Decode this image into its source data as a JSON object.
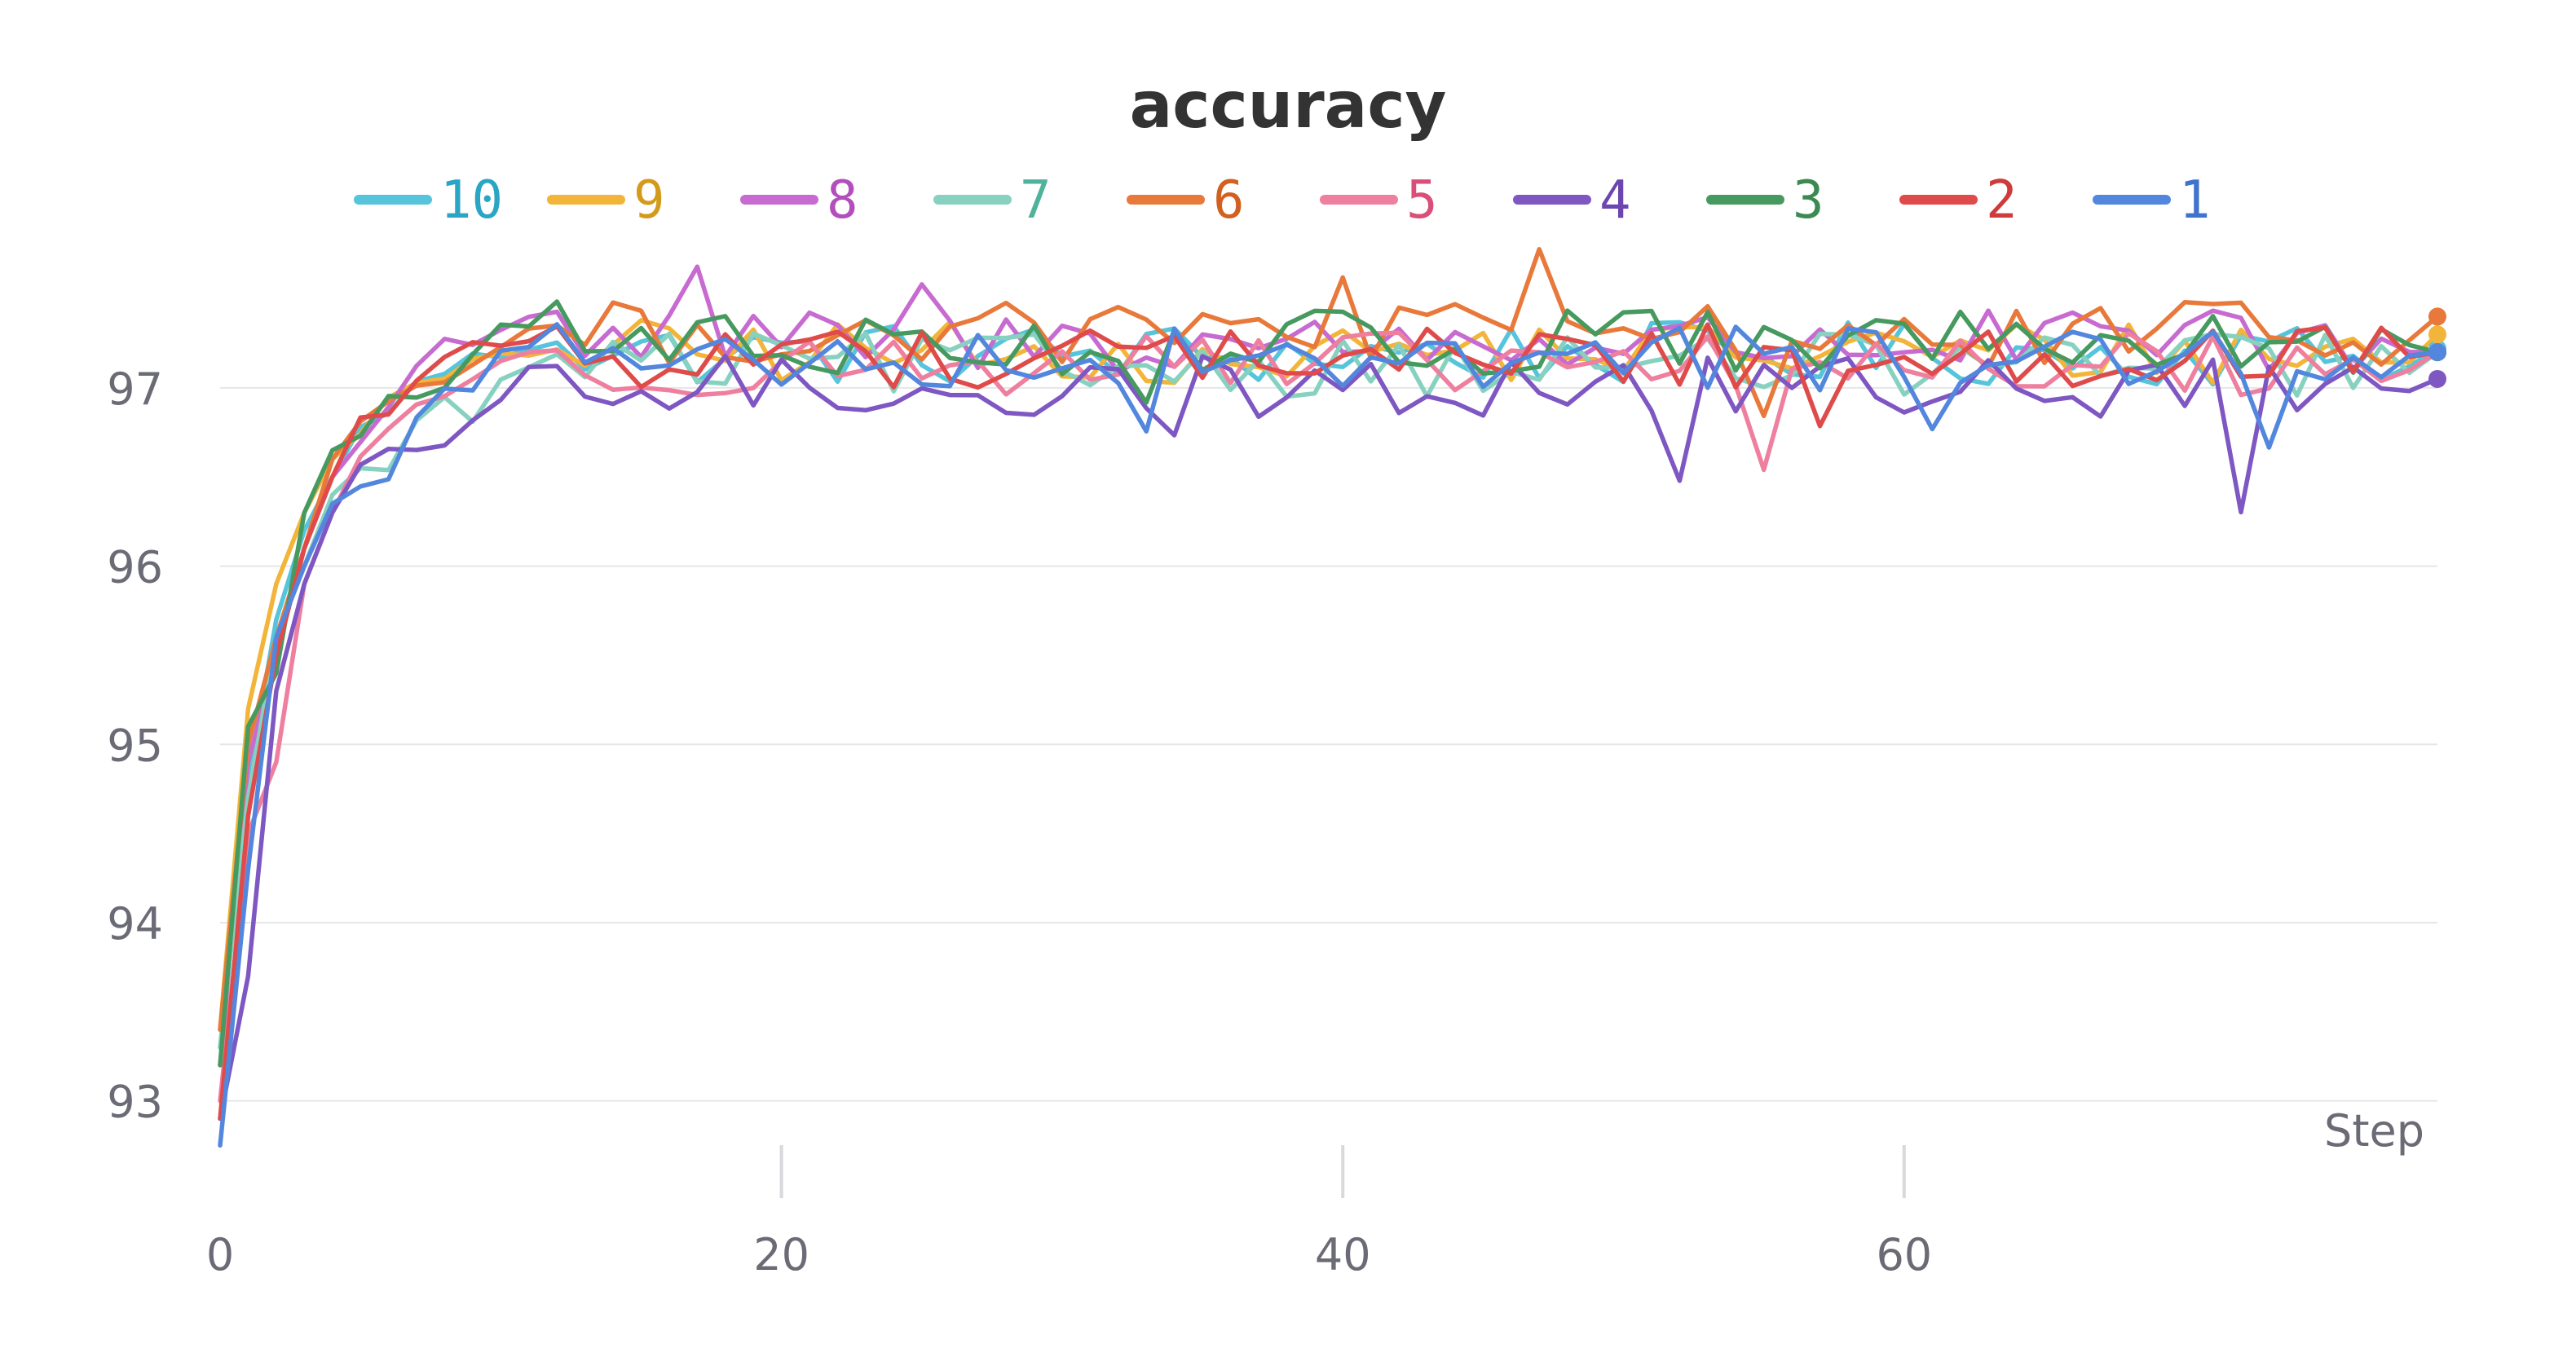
{
  "chart_data": {
    "type": "line",
    "title": "accuracy",
    "xlabel": "Step",
    "ylabel": "",
    "xlim": [
      0,
      79
    ],
    "ylim": [
      92.5,
      97.85
    ],
    "xticks": [
      0,
      20,
      40,
      60
    ],
    "yticks": [
      93,
      94,
      95,
      96,
      97
    ],
    "grid": true,
    "legend_position": "top",
    "series": [
      {
        "name": "10",
        "color": "#56c4db",
        "label_color": "#2aa6c4",
        "end": 97.22,
        "curve": [
          93.3,
          94.8,
          95.7,
          96.2,
          96.5,
          96.75,
          96.9,
          97.0,
          97.1,
          97.15,
          97.2,
          97.25,
          97.3
        ]
      },
      {
        "name": "9",
        "color": "#f2b53a",
        "label_color": "#d49a1a",
        "end": 97.3,
        "curve": [
          93.4,
          95.2,
          95.9,
          96.3,
          96.6,
          96.8,
          96.9,
          97.0,
          97.05,
          97.1,
          97.15,
          97.2,
          97.25
        ]
      },
      {
        "name": "8",
        "color": "#c86bd1",
        "label_color": "#b24fbd",
        "end": 97.2,
        "curve": [
          93.2,
          94.9,
          95.5,
          96.1,
          96.5,
          96.7,
          96.9,
          97.1,
          97.25,
          97.3,
          97.35,
          97.4,
          97.45
        ]
      },
      {
        "name": "7",
        "color": "#87d1c0",
        "label_color": "#4fb39c",
        "end": 97.2,
        "curve": [
          93.3,
          94.7,
          95.6,
          96.0,
          96.4,
          96.5,
          96.6,
          96.8,
          96.9,
          96.85,
          97.0,
          97.1,
          97.2
        ]
      },
      {
        "name": "6",
        "color": "#e8793b",
        "label_color": "#d2601f",
        "end": 97.4,
        "curve": [
          93.4,
          95.0,
          95.6,
          96.1,
          96.6,
          96.85,
          96.9,
          97.0,
          97.1,
          97.15,
          97.25,
          97.3,
          97.35
        ]
      },
      {
        "name": "5",
        "color": "#ee7f9f",
        "label_color": "#d94f7a",
        "end": 97.2,
        "curve": [
          93.0,
          94.5,
          94.9,
          95.9,
          96.3,
          96.6,
          96.8,
          96.9,
          97.0,
          97.05,
          97.1,
          97.15,
          97.2
        ]
      },
      {
        "name": "4",
        "color": "#7e57c2",
        "label_color": "#6b45b0",
        "end": 97.05,
        "curve": [
          92.9,
          93.7,
          95.3,
          95.9,
          96.3,
          96.5,
          96.6,
          96.65,
          96.7,
          96.8,
          96.95,
          97.05,
          97.1
        ]
      },
      {
        "name": "3",
        "color": "#479a5f",
        "label_color": "#3c8a51",
        "end": 97.2,
        "curve": [
          93.2,
          95.1,
          95.4,
          96.3,
          96.65,
          96.75,
          96.95,
          96.95,
          97.0,
          97.15,
          97.3,
          97.4,
          97.45
        ]
      },
      {
        "name": "2",
        "color": "#df4b4b",
        "label_color": "#cf3a3a",
        "end": 97.2,
        "curve": [
          92.9,
          94.6,
          95.5,
          96.1,
          96.5,
          96.8,
          96.9,
          97.05,
          97.15,
          97.2,
          97.25,
          97.3,
          97.3
        ]
      },
      {
        "name": "1",
        "color": "#5387dd",
        "label_color": "#3f73cc",
        "end": 97.2,
        "curve": [
          92.75,
          94.3,
          95.6,
          96.0,
          96.35,
          96.5,
          96.45,
          96.85,
          96.95,
          97.05,
          97.15,
          97.25,
          97.3
        ]
      }
    ]
  }
}
